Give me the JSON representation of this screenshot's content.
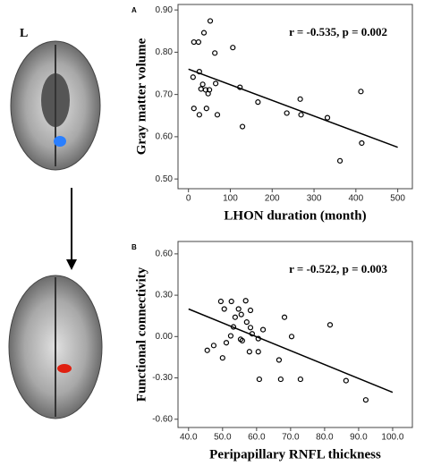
{
  "side_label": "L",
  "chart_data": [
    {
      "type": "scatter",
      "panel": "A",
      "x_label": "LHON duration (month)",
      "y_label": "Gray matter volume",
      "annotation": "r = -0.535, p = 0.002",
      "color": "#000000",
      "x": [
        52,
        37,
        13,
        24,
        106,
        63,
        26,
        11,
        34,
        30,
        41,
        50,
        47,
        123,
        65,
        267,
        412,
        13,
        43,
        26,
        69,
        166,
        235,
        269,
        332,
        129,
        414,
        362
      ],
      "values": [
        0.874,
        0.846,
        0.824,
        0.824,
        0.811,
        0.798,
        0.754,
        0.741,
        0.724,
        0.713,
        0.711,
        0.711,
        0.702,
        0.717,
        0.726,
        0.689,
        0.707,
        0.667,
        0.667,
        0.652,
        0.652,
        0.682,
        0.656,
        0.652,
        0.645,
        0.624,
        0.585,
        0.543
      ],
      "trendline": {
        "x": [
          0,
          500
        ],
        "y": [
          0.76,
          0.575
        ]
      },
      "xlim": [
        -25,
        535
      ],
      "ylim": [
        0.477,
        0.913
      ],
      "xticks": [
        0,
        100,
        200,
        300,
        400,
        500
      ],
      "yticks": [
        {
          "value": 0.5,
          "label": "0.50"
        },
        {
          "value": 0.6,
          "label": "0.60"
        },
        {
          "value": 0.7,
          "label": "0.70"
        },
        {
          "value": 0.8,
          "label": "0.80"
        },
        {
          "value": 0.9,
          "label": "0.90"
        }
      ]
    },
    {
      "type": "scatter",
      "panel": "B",
      "x_label": "Peripapillary RNFL thickness",
      "y_label": "Functional connectivity",
      "annotation": "r = -0.522, p = 0.003",
      "color": "#000000",
      "x": [
        49.5,
        52.6,
        56.8,
        50.5,
        54.7,
        58.2,
        53.7,
        55.5,
        57.1,
        53.2,
        58.2,
        61.9,
        68.2,
        81.6,
        52.4,
        58.7,
        70.3,
        55.3,
        55.8,
        60.5,
        47.4,
        51.1,
        45.5,
        57.9,
        60.5,
        50,
        66.6,
        60.8,
        67.1,
        72.9,
        86.3,
        92.1
      ],
      "values": [
        0.255,
        0.255,
        0.26,
        0.2,
        0.2,
        0.19,
        0.14,
        0.16,
        0.105,
        0.07,
        0.065,
        0.05,
        0.14,
        0.085,
        0.005,
        0.02,
        0.0,
        -0.02,
        -0.03,
        -0.015,
        -0.065,
        -0.045,
        -0.1,
        -0.11,
        -0.11,
        -0.155,
        -0.17,
        -0.31,
        -0.31,
        -0.31,
        -0.32,
        -0.46
      ],
      "trendline": {
        "x": [
          40,
          100
        ],
        "y": [
          0.2,
          -0.405
        ]
      },
      "xlim": [
        36.9,
        105.8
      ],
      "ylim": [
        -0.66,
        0.69
      ],
      "xticks": [
        {
          "value": 40,
          "label": "40.0"
        },
        {
          "value": 50,
          "label": "50.0"
        },
        {
          "value": 60,
          "label": "60.0"
        },
        {
          "value": 70,
          "label": "70.0"
        },
        {
          "value": 80,
          "label": "80.0"
        },
        {
          "value": 90,
          "label": "90.0"
        },
        {
          "value": 100,
          "label": "100.0"
        }
      ],
      "yticks": [
        {
          "value": 0.6,
          "label": "0.60"
        },
        {
          "value": 0.3,
          "label": "0.30"
        },
        {
          "value": 0.0,
          "label": "0.00"
        },
        {
          "value": -0.3,
          "label": "-0.30"
        },
        {
          "value": -0.6,
          "label": "-0.60"
        }
      ]
    }
  ]
}
